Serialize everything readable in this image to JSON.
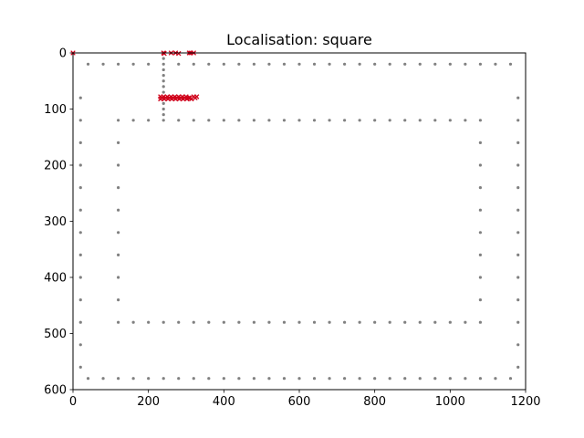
{
  "chart_data": {
    "type": "scatter",
    "title": "Localisation: square",
    "xlabel": "",
    "ylabel": "",
    "xlim": [
      0,
      1200
    ],
    "ylim": [
      600,
      0
    ],
    "y_inverted": true,
    "grid": false,
    "xticks": [
      0,
      200,
      400,
      600,
      800,
      1000,
      1200
    ],
    "yticks": [
      0,
      100,
      200,
      300,
      400,
      500,
      600
    ],
    "colors": {
      "walls": "#808080",
      "estimates": "#d0021b"
    },
    "series": [
      {
        "role": "walls",
        "marker": "dot",
        "points": [
          [
            40,
            20
          ],
          [
            80,
            20
          ],
          [
            120,
            20
          ],
          [
            160,
            20
          ],
          [
            200,
            20
          ],
          [
            240,
            20
          ],
          [
            280,
            20
          ],
          [
            320,
            20
          ],
          [
            360,
            20
          ],
          [
            400,
            20
          ],
          [
            440,
            20
          ],
          [
            480,
            20
          ],
          [
            520,
            20
          ],
          [
            560,
            20
          ],
          [
            600,
            20
          ],
          [
            640,
            20
          ],
          [
            680,
            20
          ],
          [
            720,
            20
          ],
          [
            760,
            20
          ],
          [
            800,
            20
          ],
          [
            840,
            20
          ],
          [
            880,
            20
          ],
          [
            920,
            20
          ],
          [
            960,
            20
          ],
          [
            1000,
            20
          ],
          [
            1040,
            20
          ],
          [
            1080,
            20
          ],
          [
            1120,
            20
          ],
          [
            1160,
            20
          ],
          [
            20,
            80
          ],
          [
            20,
            120
          ],
          [
            20,
            160
          ],
          [
            20,
            200
          ],
          [
            20,
            240
          ],
          [
            20,
            280
          ],
          [
            20,
            320
          ],
          [
            20,
            360
          ],
          [
            20,
            400
          ],
          [
            20,
            440
          ],
          [
            20,
            480
          ],
          [
            20,
            520
          ],
          [
            20,
            560
          ],
          [
            1180,
            80
          ],
          [
            1180,
            120
          ],
          [
            1180,
            160
          ],
          [
            1180,
            200
          ],
          [
            1180,
            240
          ],
          [
            1180,
            280
          ],
          [
            1180,
            320
          ],
          [
            1180,
            360
          ],
          [
            1180,
            400
          ],
          [
            1180,
            440
          ],
          [
            1180,
            480
          ],
          [
            1180,
            520
          ],
          [
            1180,
            560
          ],
          [
            40,
            580
          ],
          [
            80,
            580
          ],
          [
            120,
            580
          ],
          [
            160,
            580
          ],
          [
            200,
            580
          ],
          [
            240,
            580
          ],
          [
            280,
            580
          ],
          [
            320,
            580
          ],
          [
            360,
            580
          ],
          [
            400,
            580
          ],
          [
            440,
            580
          ],
          [
            480,
            580
          ],
          [
            520,
            580
          ],
          [
            560,
            580
          ],
          [
            600,
            580
          ],
          [
            640,
            580
          ],
          [
            680,
            580
          ],
          [
            720,
            580
          ],
          [
            760,
            580
          ],
          [
            800,
            580
          ],
          [
            840,
            580
          ],
          [
            880,
            580
          ],
          [
            920,
            580
          ],
          [
            960,
            580
          ],
          [
            1000,
            580
          ],
          [
            1040,
            580
          ],
          [
            1080,
            580
          ],
          [
            1120,
            580
          ],
          [
            1160,
            580
          ],
          [
            120,
            120
          ],
          [
            160,
            120
          ],
          [
            200,
            120
          ],
          [
            240,
            120
          ],
          [
            280,
            120
          ],
          [
            320,
            120
          ],
          [
            360,
            120
          ],
          [
            400,
            120
          ],
          [
            440,
            120
          ],
          [
            480,
            120
          ],
          [
            520,
            120
          ],
          [
            560,
            120
          ],
          [
            600,
            120
          ],
          [
            640,
            120
          ],
          [
            680,
            120
          ],
          [
            720,
            120
          ],
          [
            760,
            120
          ],
          [
            800,
            120
          ],
          [
            840,
            120
          ],
          [
            880,
            120
          ],
          [
            920,
            120
          ],
          [
            960,
            120
          ],
          [
            1000,
            120
          ],
          [
            1040,
            120
          ],
          [
            1080,
            120
          ],
          [
            120,
            160
          ],
          [
            120,
            200
          ],
          [
            120,
            240
          ],
          [
            120,
            280
          ],
          [
            120,
            320
          ],
          [
            120,
            360
          ],
          [
            120,
            400
          ],
          [
            120,
            440
          ],
          [
            120,
            480
          ],
          [
            1080,
            160
          ],
          [
            1080,
            200
          ],
          [
            1080,
            240
          ],
          [
            1080,
            280
          ],
          [
            1080,
            320
          ],
          [
            1080,
            360
          ],
          [
            1080,
            400
          ],
          [
            1080,
            440
          ],
          [
            1080,
            480
          ],
          [
            160,
            480
          ],
          [
            200,
            480
          ],
          [
            240,
            480
          ],
          [
            280,
            480
          ],
          [
            320,
            480
          ],
          [
            360,
            480
          ],
          [
            400,
            480
          ],
          [
            440,
            480
          ],
          [
            480,
            480
          ],
          [
            520,
            480
          ],
          [
            560,
            480
          ],
          [
            600,
            480
          ],
          [
            640,
            480
          ],
          [
            680,
            480
          ],
          [
            720,
            480
          ],
          [
            760,
            480
          ],
          [
            800,
            480
          ],
          [
            840,
            480
          ],
          [
            880,
            480
          ],
          [
            920,
            480
          ],
          [
            960,
            480
          ],
          [
            1000,
            480
          ],
          [
            1040,
            480
          ],
          [
            240,
            0
          ],
          [
            240,
            10
          ],
          [
            240,
            30
          ],
          [
            240,
            40
          ],
          [
            240,
            50
          ],
          [
            240,
            60
          ],
          [
            240,
            70
          ],
          [
            240,
            90
          ],
          [
            240,
            100
          ],
          [
            240,
            110
          ]
        ]
      },
      {
        "role": "estimates",
        "marker": "x",
        "points": [
          [
            0,
            0
          ],
          [
            240,
            0
          ],
          [
            242,
            1
          ],
          [
            260,
            0
          ],
          [
            272,
            0
          ],
          [
            280,
            1
          ],
          [
            308,
            0
          ],
          [
            312,
            0
          ],
          [
            320,
            0
          ],
          [
            232,
            78
          ],
          [
            232,
            82
          ],
          [
            236,
            80
          ],
          [
            240,
            78
          ],
          [
            242,
            82
          ],
          [
            246,
            80
          ],
          [
            250,
            78
          ],
          [
            252,
            82
          ],
          [
            256,
            80
          ],
          [
            260,
            78
          ],
          [
            262,
            82
          ],
          [
            266,
            80
          ],
          [
            270,
            78
          ],
          [
            272,
            82
          ],
          [
            276,
            80
          ],
          [
            280,
            78
          ],
          [
            282,
            82
          ],
          [
            286,
            80
          ],
          [
            290,
            78
          ],
          [
            292,
            82
          ],
          [
            296,
            80
          ],
          [
            300,
            78
          ],
          [
            302,
            82
          ],
          [
            306,
            80
          ],
          [
            310,
            80
          ],
          [
            314,
            82
          ],
          [
            320,
            78
          ],
          [
            324,
            80
          ],
          [
            328,
            78
          ]
        ]
      }
    ]
  }
}
